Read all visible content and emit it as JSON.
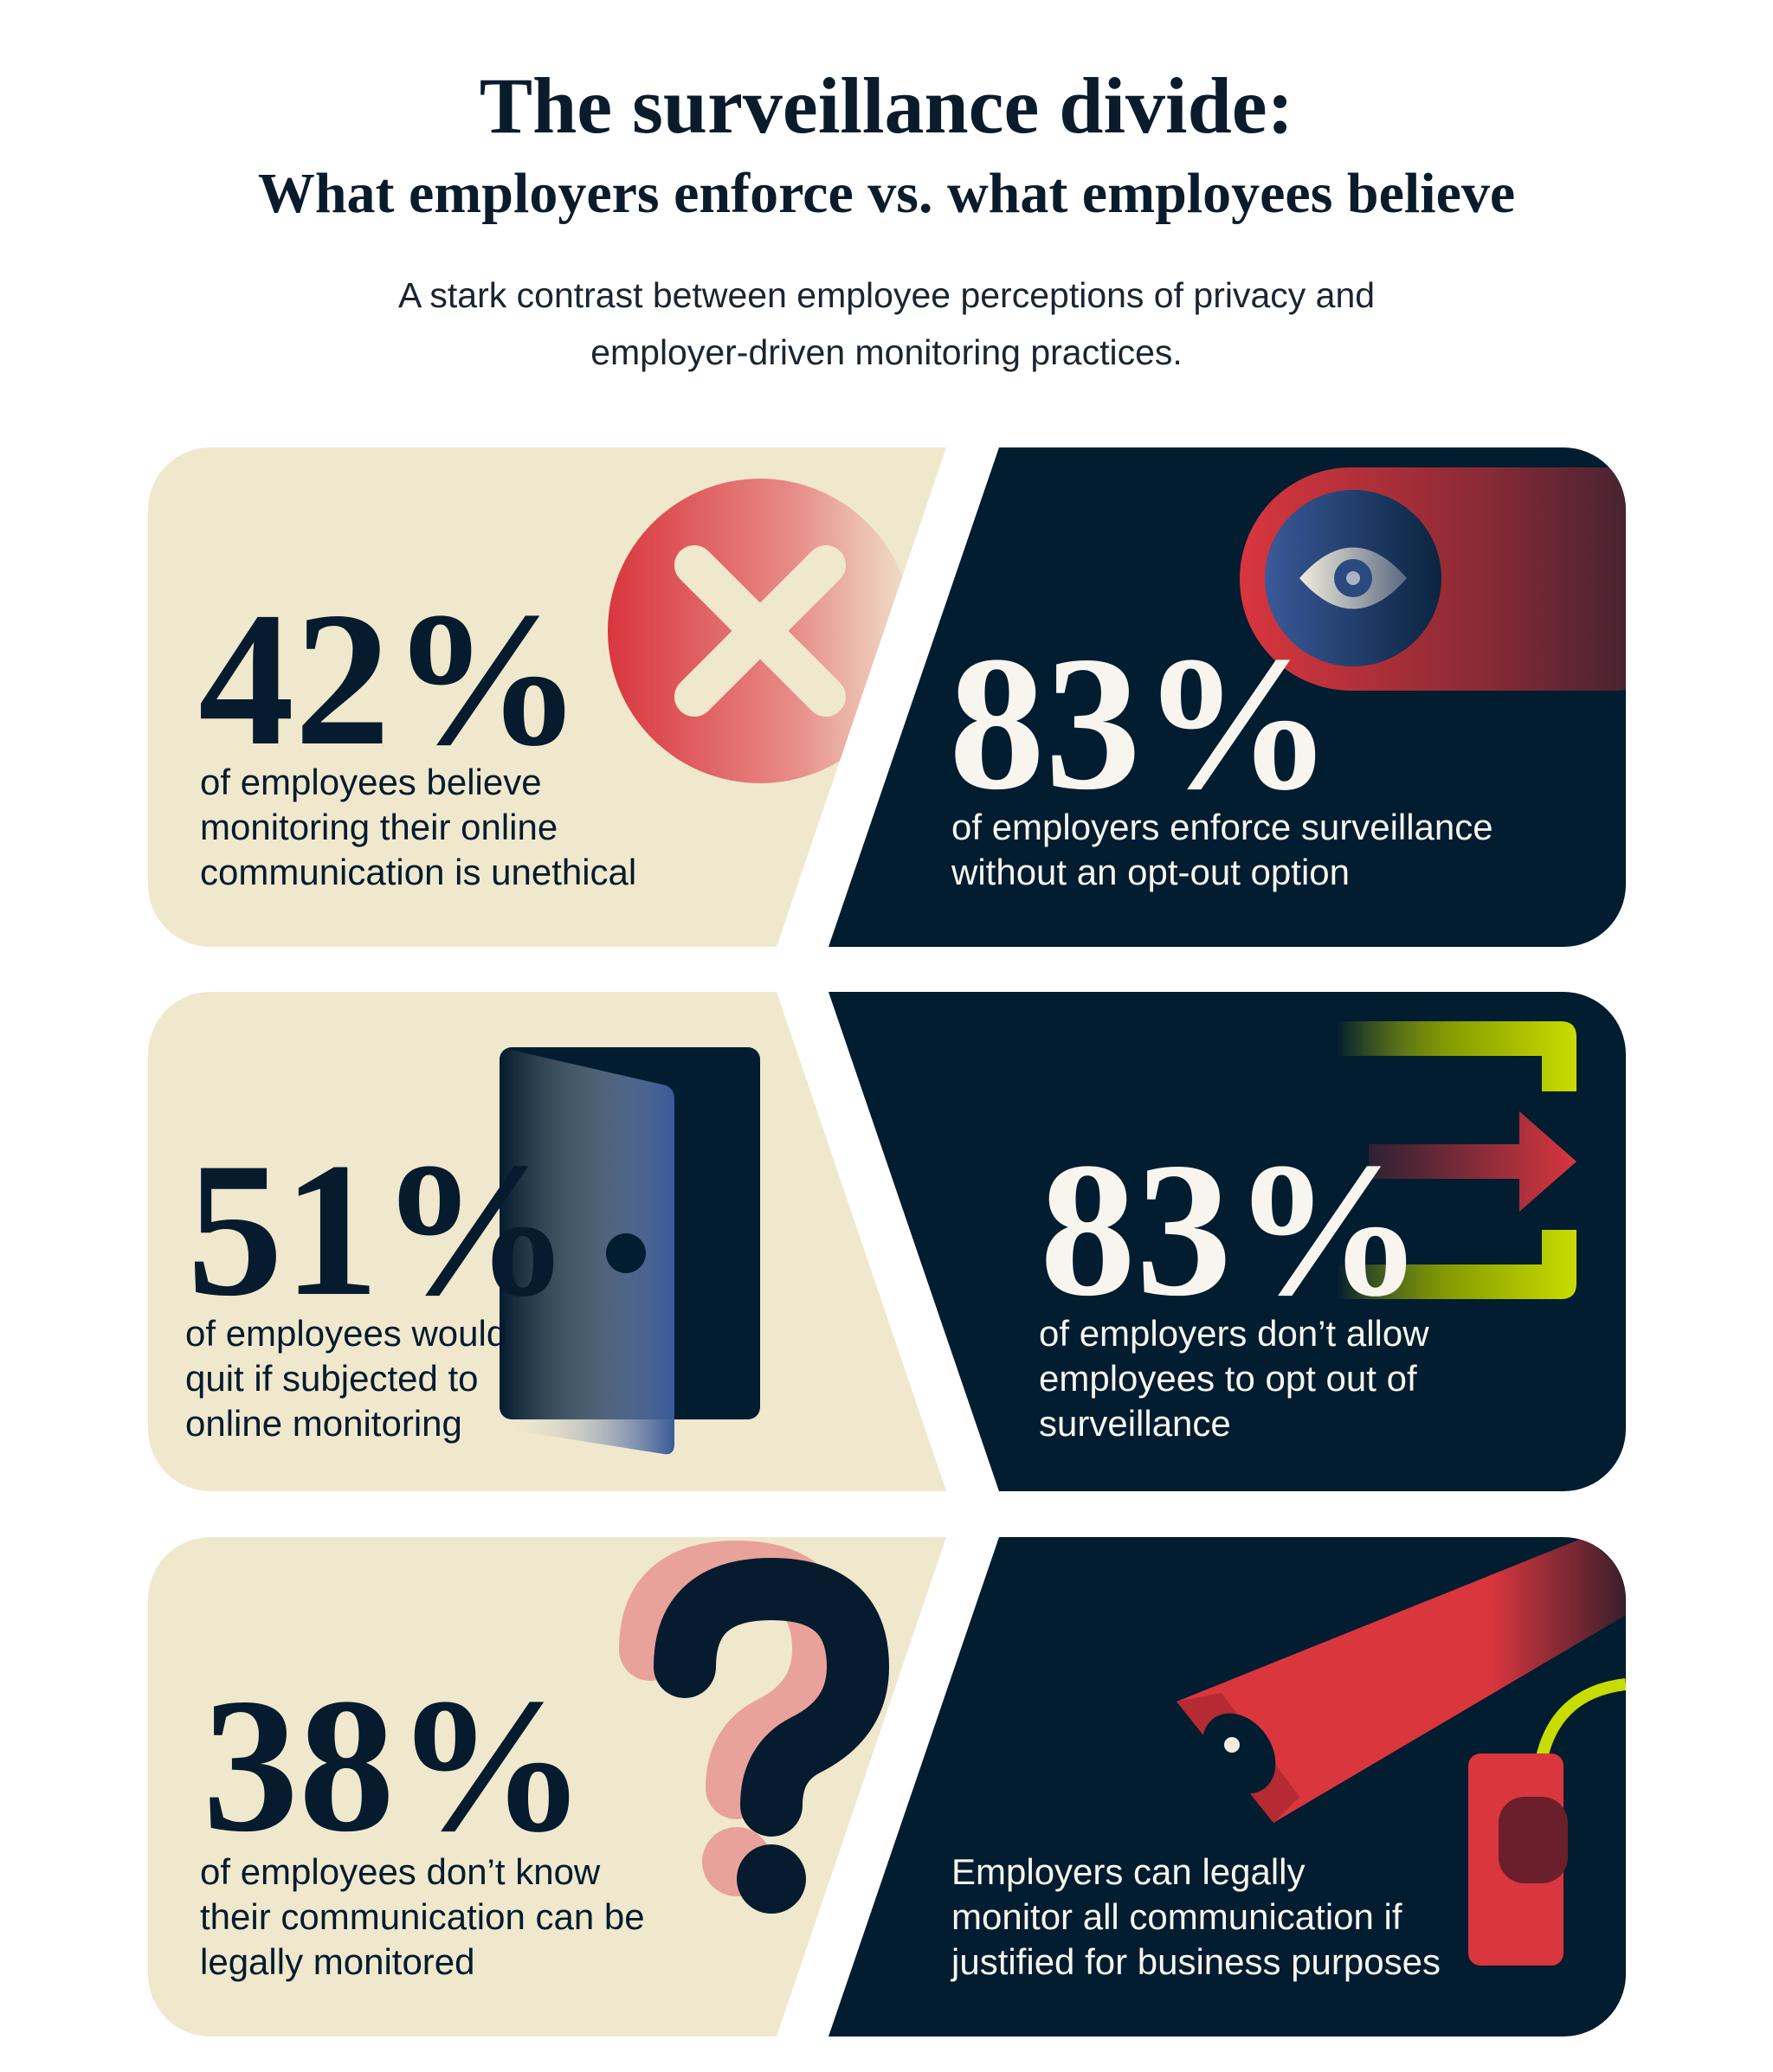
{
  "header": {
    "title": "The surveillance divide:",
    "subtitle": "What employers enforce vs. what employees believe",
    "description_lines": [
      "A stark contrast between employee perceptions of privacy and",
      "employer-driven monitoring practices."
    ]
  },
  "colors": {
    "cream": "#efe8cd",
    "navy": "#021c30",
    "red": "#d9363e",
    "lime": "#c8dc00",
    "blue": "#3a5a9a"
  },
  "rows": [
    {
      "employee": {
        "stat": "42%",
        "lines": [
          "of employees believe",
          "monitoring their online",
          "communication is unethical"
        ],
        "icon": "x-circle-icon"
      },
      "employer": {
        "stat": "83%",
        "lines": [
          "of employers enforce surveillance",
          "without an opt-out option"
        ],
        "icon": "eye-icon"
      }
    },
    {
      "employee": {
        "stat": "51%",
        "lines": [
          "of employees would",
          "quit if subjected to",
          "online monitoring"
        ],
        "icon": "door-icon"
      },
      "employer": {
        "stat": "83%",
        "lines": [
          "of employers don’t allow",
          "employees to opt out of",
          "surveillance"
        ],
        "icon": "exit-icon"
      }
    },
    {
      "employee": {
        "stat": "38%",
        "lines": [
          "of employees don’t know",
          "their communication can be",
          "legally monitored"
        ],
        "icon": "question-mark-icon"
      },
      "employer": {
        "lines": [
          "Employers can legally",
          "monitor all communication if",
          "justified for business purposes"
        ],
        "icon": "security-camera-icon"
      }
    }
  ]
}
